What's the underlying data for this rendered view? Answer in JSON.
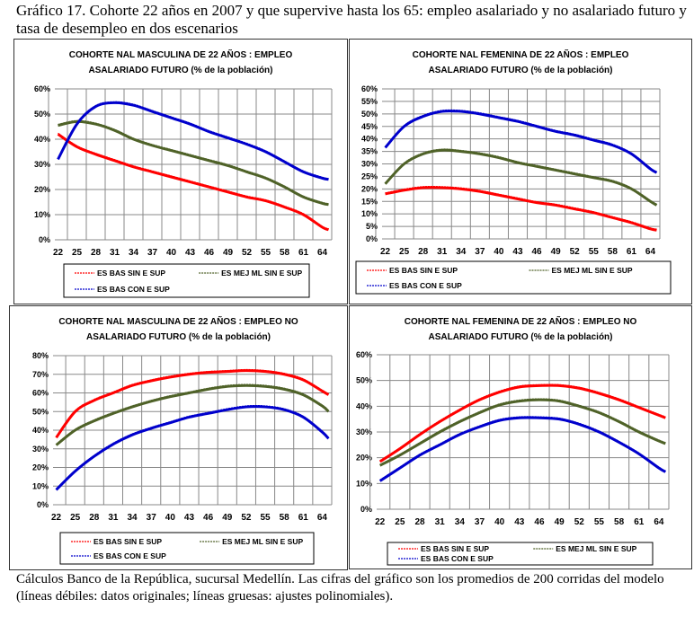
{
  "figure": {
    "title": "Gráfico 17.  Cohorte 22 años en 2007 y que supervive hasta los 65: empleo asalariado y no asalariado futuro y tasa de desempleo en dos escenarios",
    "caption": "Cálculos Banco de la República, sucursal Medellín. Las cifras del gráfico son los promedios de 200 corridas del modelo (líneas débiles: datos originales; líneas gruesas: ajustes polinomiales)."
  },
  "colors": {
    "red": "#ff0000",
    "green": "#4f6228",
    "blue": "#0000cc"
  },
  "chart_data": [
    {
      "type": "line",
      "title": [
        "COHORTE NAL MASCULINA  DE 22 AÑOS : EMPLEO",
        "ASALARIADO FUTURO (% de la población)"
      ],
      "x": [
        22,
        25,
        28,
        31,
        34,
        37,
        40,
        43,
        46,
        49,
        52,
        55,
        58,
        61,
        64,
        65
      ],
      "xticks": [
        "22",
        "25",
        "28",
        "31",
        "34",
        "37",
        "40",
        "43",
        "46",
        "49",
        "52",
        "55",
        "58",
        "61",
        "64"
      ],
      "yticks": [
        "0%",
        "10%",
        "20%",
        "30%",
        "40%",
        "50%",
        "60%"
      ],
      "ylim": [
        0,
        60
      ],
      "grid": true,
      "legend": "bottom",
      "series": [
        {
          "name": "ES BAS SIN E SUP",
          "color": "red",
          "values": [
            42,
            37,
            34,
            31.5,
            29,
            27,
            25,
            23,
            21,
            19,
            17,
            15.5,
            13,
            10,
            5,
            4
          ]
        },
        {
          "name": "ES MEJ ML SIN E SUP",
          "color": "green",
          "values": [
            45.5,
            47,
            46,
            43.5,
            40,
            37.5,
            35.5,
            33.5,
            31.5,
            29.5,
            27,
            24.5,
            21,
            17,
            14.5,
            14
          ]
        },
        {
          "name": "ES BAS CON E SUP",
          "color": "blue",
          "values": [
            32,
            46,
            53,
            54.5,
            53.5,
            51,
            48.5,
            46,
            43,
            40.5,
            38,
            35,
            31,
            27,
            24.5,
            24
          ]
        }
      ]
    },
    {
      "type": "line",
      "title": [
        "COHORTE NAL FEMENINA  DE 22 AÑOS : EMPLEO",
        "ASALARIADO FUTURO (% de la población)"
      ],
      "x": [
        22,
        25,
        28,
        31,
        34,
        37,
        40,
        43,
        46,
        49,
        52,
        55,
        58,
        61,
        64,
        65
      ],
      "xticks": [
        "22",
        "25",
        "28",
        "31",
        "34",
        "37",
        "40",
        "43",
        "46",
        "49",
        "52",
        "55",
        "58",
        "61",
        "64"
      ],
      "yticks": [
        "0%",
        "5%",
        "10%",
        "15%",
        "20%",
        "25%",
        "30%",
        "35%",
        "40%",
        "45%",
        "50%",
        "55%",
        "60%"
      ],
      "ylim": [
        0,
        60
      ],
      "grid": true,
      "legend": "bottom",
      "series": [
        {
          "name": "ES BAS SIN E SUP",
          "color": "red",
          "values": [
            18,
            19.5,
            20.5,
            20.5,
            20,
            19,
            17.5,
            16,
            14.5,
            13.5,
            12,
            10.5,
            8.5,
            6.5,
            4,
            3.5
          ]
        },
        {
          "name": "ES MEJ ML SIN E SUP",
          "color": "green",
          "values": [
            22,
            30,
            34,
            35.5,
            35,
            34,
            32.5,
            30.5,
            29,
            27.5,
            26,
            24.5,
            23,
            20,
            15,
            13.5
          ]
        },
        {
          "name": "ES BAS CON E SUP",
          "color": "blue",
          "values": [
            36.5,
            45,
            49,
            51,
            51,
            50,
            48.5,
            47,
            45,
            43,
            41.5,
            39.5,
            37.5,
            34,
            28,
            26.5
          ]
        }
      ]
    },
    {
      "type": "line",
      "title": [
        "COHORTE NAL MASCULINA  DE 22 AÑOS : EMPLEO NO",
        "ASALARIADO FUTURO (% de la población)"
      ],
      "x": [
        22,
        25,
        28,
        31,
        34,
        37,
        40,
        43,
        46,
        49,
        52,
        55,
        58,
        61,
        64,
        65
      ],
      "xticks": [
        "22",
        "25",
        "28",
        "31",
        "34",
        "37",
        "40",
        "43",
        "46",
        "49",
        "52",
        "55",
        "58",
        "61",
        "64"
      ],
      "yticks": [
        "0%",
        "10%",
        "20%",
        "30%",
        "40%",
        "50%",
        "60%",
        "70%",
        "80%"
      ],
      "ylim": [
        0,
        80
      ],
      "grid": true,
      "legend": "bottom",
      "series": [
        {
          "name": "ES BAS SIN E SUP",
          "color": "red",
          "values": [
            36,
            50,
            56,
            60,
            64,
            66.5,
            68.5,
            70,
            71,
            71.5,
            72,
            71.5,
            70,
            67,
            61,
            59
          ]
        },
        {
          "name": "ES MEJ ML SIN E SUP",
          "color": "green",
          "values": [
            32,
            40,
            45,
            49,
            52.5,
            55.5,
            58,
            60,
            62,
            63.5,
            64,
            63.5,
            62,
            59,
            53,
            50
          ]
        },
        {
          "name": "ES BAS CON E SUP",
          "color": "blue",
          "values": [
            8,
            18,
            26,
            32.5,
            37.5,
            41,
            44,
            47,
            49,
            51,
            52.5,
            52.5,
            51,
            47,
            39,
            35.5
          ]
        }
      ]
    },
    {
      "type": "line",
      "title": [
        "COHORTE NAL FEMENINA  DE 22 AÑOS : EMPLEO NO",
        "ASALARIADO FUTURO (% de la población)"
      ],
      "x": [
        22,
        25,
        28,
        31,
        34,
        37,
        40,
        43,
        46,
        49,
        52,
        55,
        58,
        61,
        64,
        65
      ],
      "xticks": [
        "22",
        "25",
        "28",
        "31",
        "34",
        "37",
        "40",
        "43",
        "46",
        "49",
        "52",
        "55",
        "58",
        "61",
        "64"
      ],
      "yticks": [
        "0%",
        "10%",
        "20%",
        "30%",
        "40%",
        "50%",
        "60%"
      ],
      "ylim": [
        0,
        60
      ],
      "grid": true,
      "legend": "bottom",
      "series": [
        {
          "name": "ES BAS SIN E SUP",
          "color": "red",
          "values": [
            18.5,
            23.5,
            29,
            34,
            38.5,
            42.5,
            45.5,
            47.5,
            48,
            48,
            47,
            45,
            42.5,
            39.5,
            36.5,
            35.5
          ]
        },
        {
          "name": "ES MEJ ML SIN E SUP",
          "color": "green",
          "values": [
            17,
            21,
            25.5,
            30,
            34,
            37.5,
            40.5,
            42,
            42.5,
            42,
            40,
            37.5,
            34,
            30,
            26.5,
            25.5
          ]
        },
        {
          "name": "ES BAS CON E SUP",
          "color": "blue",
          "values": [
            11,
            16,
            21,
            25,
            29,
            32,
            34.5,
            35.5,
            35.5,
            35,
            33,
            30,
            26,
            21.5,
            16,
            14.5
          ]
        }
      ]
    }
  ]
}
